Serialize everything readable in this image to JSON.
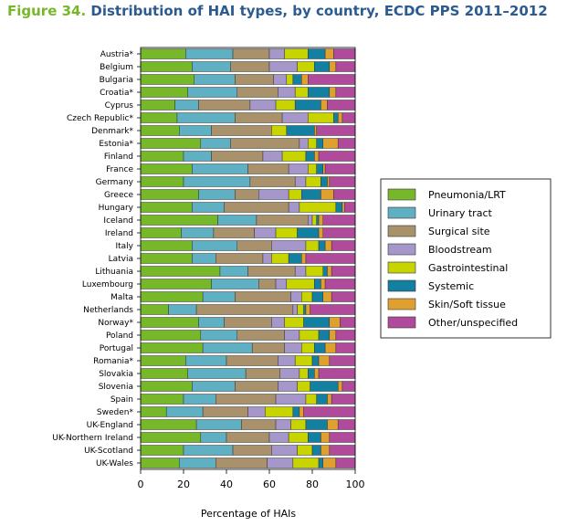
{
  "figure": {
    "number": "Figure 34.",
    "title": "Distribution of HAI types, by country, ECDC PPS 2011–2012"
  },
  "chart_data": {
    "type": "bar",
    "orientation": "horizontal",
    "stacked": true,
    "title": "Distribution of HAI types, by country, ECDC PPS 2011–2012",
    "xlabel": "Percentage of HAIs",
    "ylabel": "",
    "xlim": [
      0,
      100
    ],
    "xticks": [
      0,
      20,
      40,
      60,
      80,
      100
    ],
    "grid": false,
    "legend_position": "right",
    "categories": [
      "Austria*",
      "Belgium",
      "Bulgaria",
      "Croatia*",
      "Cyprus",
      "Czech Republic*",
      "Denmark*",
      "Estonia*",
      "Finland",
      "France",
      "Germany",
      "Greece",
      "Hungary",
      "Iceland",
      "Ireland",
      "Italy",
      "Latvia",
      "Lithuania",
      "Luxembourg",
      "Malta",
      "Netherlands",
      "Norway*",
      "Poland",
      "Portugal",
      "Romania*",
      "Slovakia",
      "Slovenia",
      "Spain",
      "Sweden*",
      "UK-England",
      "UK-Northern Ireland",
      "UK-Scotland",
      "UK-Wales"
    ],
    "series": [
      {
        "name": "Pneumonia/LRT",
        "color": "#76b82a",
        "values": [
          21,
          24,
          25,
          22,
          16,
          17,
          18,
          28,
          20,
          24,
          20,
          27,
          24,
          36,
          19,
          24,
          24,
          37,
          33,
          29,
          13,
          27,
          28,
          29,
          21,
          22,
          24,
          20,
          12,
          26,
          28,
          20,
          18
        ]
      },
      {
        "name": "Urinary tract",
        "color": "#5fb0c2",
        "values": [
          22,
          18,
          19,
          23,
          11,
          27,
          15,
          14,
          13,
          26,
          31,
          17,
          15,
          18,
          15,
          21,
          11,
          13,
          22,
          15,
          13,
          12,
          17,
          23,
          19,
          27,
          20,
          15,
          17,
          21,
          12,
          23,
          17
        ]
      },
      {
        "name": "Surgical site",
        "color": "#a8916b",
        "values": [
          17,
          18,
          18,
          19,
          24,
          22,
          28,
          32,
          24,
          19,
          21,
          11,
          30,
          24,
          19,
          16,
          22,
          22,
          8,
          26,
          45,
          22,
          22,
          15,
          24,
          16,
          20,
          28,
          21,
          16,
          20,
          18,
          24
        ]
      },
      {
        "name": "Bloodstream",
        "color": "#a597c9",
        "values": [
          7,
          13,
          6,
          8,
          12,
          12,
          0,
          4,
          9,
          9,
          5,
          14,
          5,
          2,
          10,
          16,
          4,
          5,
          5,
          5,
          2,
          6,
          7,
          8,
          8,
          9,
          9,
          14,
          8,
          7,
          9,
          12,
          12
        ]
      },
      {
        "name": "Gastrointestinal",
        "color": "#c8d400",
        "values": [
          11,
          8,
          3,
          6,
          9,
          12,
          7,
          4,
          11,
          4,
          7,
          6,
          17,
          2,
          10,
          6,
          8,
          8,
          13,
          5,
          3,
          9,
          9,
          6,
          8,
          4,
          6,
          5,
          13,
          7,
          9,
          7,
          12
        ]
      },
      {
        "name": "Systemic",
        "color": "#1380a1",
        "values": [
          8,
          7,
          4,
          10,
          12,
          2,
          13,
          3,
          4,
          3,
          3,
          9,
          3,
          1,
          10,
          3,
          6,
          2,
          3,
          5,
          1,
          12,
          5,
          5,
          3,
          3,
          13,
          5,
          3,
          10,
          6,
          4,
          2
        ]
      },
      {
        "name": "Skin/Soft tissue",
        "color": "#e0a030",
        "values": [
          4,
          3,
          3,
          3,
          3,
          2,
          1,
          7,
          2,
          1,
          1,
          6,
          1,
          2,
          2,
          3,
          2,
          2,
          2,
          4,
          2,
          5,
          3,
          5,
          5,
          2,
          2,
          2,
          2,
          5,
          4,
          4,
          6
        ]
      },
      {
        "name": "Other/unspecified",
        "color": "#b04a9a",
        "values": [
          10,
          9,
          22,
          9,
          13,
          6,
          18,
          8,
          17,
          14,
          12,
          10,
          5,
          15,
          15,
          11,
          23,
          11,
          14,
          11,
          21,
          7,
          9,
          9,
          12,
          17,
          6,
          11,
          24,
          8,
          12,
          12,
          9
        ]
      }
    ]
  }
}
